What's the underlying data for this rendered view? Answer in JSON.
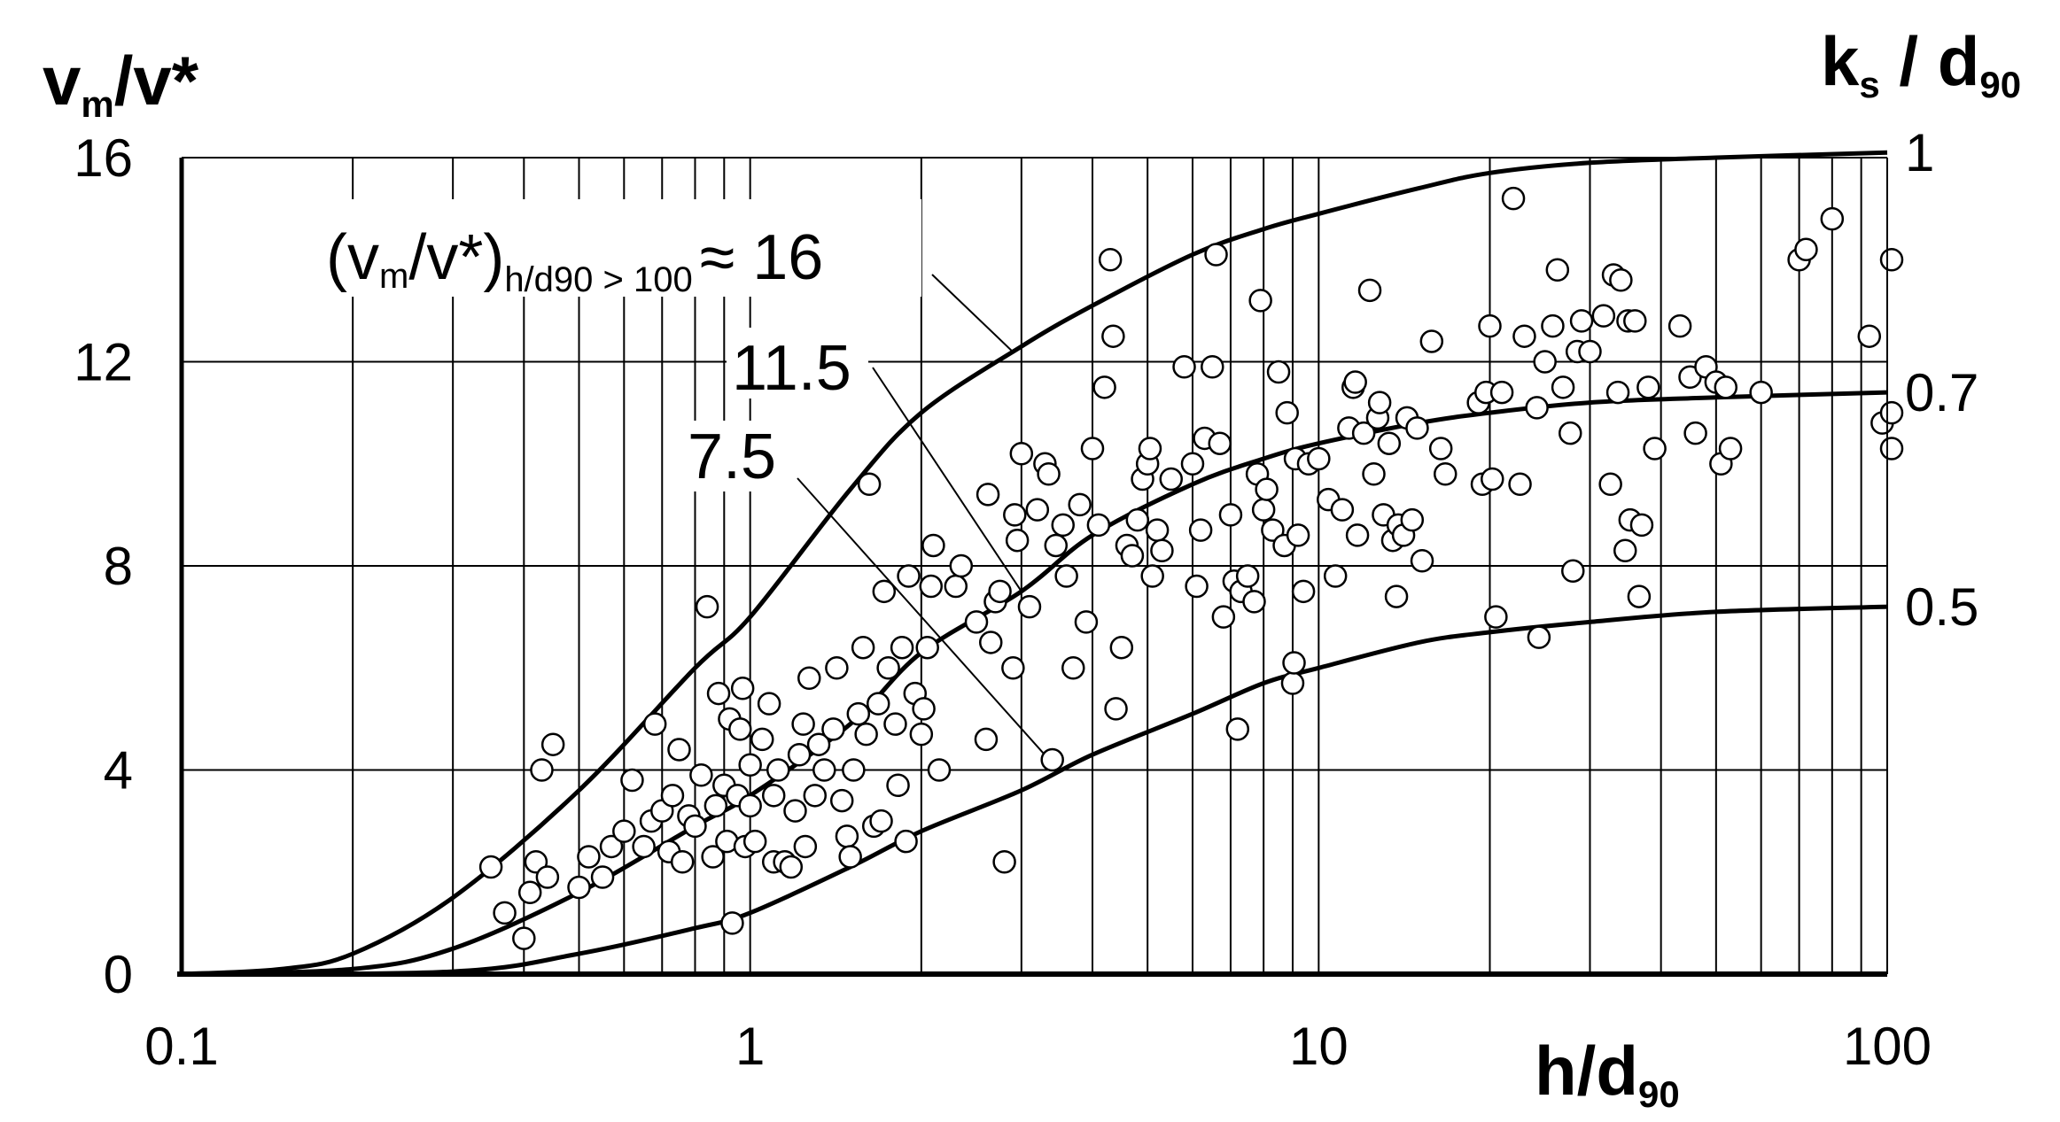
{
  "chart_data": {
    "type": "scatter",
    "x_scale": "log",
    "xlim": [
      0.1,
      100
    ],
    "ylim": [
      0,
      16
    ],
    "grid": true,
    "x_ticks": [
      "0.1",
      "1",
      "10",
      "100"
    ],
    "y_ticks": [
      "0",
      "4",
      "8",
      "12",
      "16"
    ],
    "right_ticks": [
      "1",
      "0.7",
      "0.5"
    ],
    "xlabel": {
      "main": "h/d",
      "sub": "90"
    },
    "ylabel": {
      "v1": "v",
      "sub": "m",
      "rest": "/v*"
    },
    "right_label": {
      "main": "k",
      "sub_s": "s",
      "mid": " / d",
      "sub_90": "90"
    },
    "annotation_16": {
      "open": "(v",
      "sub_m": "m",
      "mid": "/v*)",
      "sub_cond": "h/d90 > 100",
      "tail": "≈ 16"
    },
    "annotation_115": "11.5",
    "annotation_75": "7.5",
    "curves": [
      {
        "ks_d90": "1",
        "asymptote": 16,
        "points": [
          [
            0.1,
            0.0
          ],
          [
            0.15,
            0.1
          ],
          [
            0.2,
            0.4
          ],
          [
            0.3,
            1.5
          ],
          [
            0.5,
            3.6
          ],
          [
            0.8,
            6.0
          ],
          [
            1.0,
            7.0
          ],
          [
            1.5,
            9.5
          ],
          [
            2.0,
            11.0
          ],
          [
            3.0,
            12.3
          ],
          [
            4.0,
            13.1
          ],
          [
            6.0,
            14.1
          ],
          [
            8.0,
            14.6
          ],
          [
            10.0,
            14.9
          ],
          [
            15.0,
            15.4
          ],
          [
            20.0,
            15.7
          ],
          [
            30.0,
            15.9
          ],
          [
            50.0,
            16.0
          ],
          [
            100.0,
            16.1
          ]
        ]
      },
      {
        "ks_d90": "0.7",
        "asymptote": 11.5,
        "points": [
          [
            0.1,
            0.0
          ],
          [
            0.2,
            0.1
          ],
          [
            0.3,
            0.5
          ],
          [
            0.5,
            1.6
          ],
          [
            0.8,
            2.9
          ],
          [
            1.0,
            3.5
          ],
          [
            1.5,
            4.9
          ],
          [
            2.0,
            6.3
          ],
          [
            3.0,
            7.5
          ],
          [
            4.0,
            8.6
          ],
          [
            6.0,
            9.6
          ],
          [
            8.0,
            10.1
          ],
          [
            10.0,
            10.4
          ],
          [
            15.0,
            10.8
          ],
          [
            20.0,
            11.0
          ],
          [
            30.0,
            11.2
          ],
          [
            50.0,
            11.3
          ],
          [
            100.0,
            11.4
          ]
        ]
      },
      {
        "ks_d90": "0.5",
        "asymptote": 7.5,
        "points": [
          [
            0.1,
            0.0
          ],
          [
            0.3,
            0.05
          ],
          [
            0.5,
            0.4
          ],
          [
            0.8,
            0.9
          ],
          [
            1.0,
            1.2
          ],
          [
            1.5,
            2.1
          ],
          [
            2.0,
            2.8
          ],
          [
            3.0,
            3.6
          ],
          [
            4.0,
            4.3
          ],
          [
            6.0,
            5.1
          ],
          [
            8.0,
            5.7
          ],
          [
            10.0,
            6.0
          ],
          [
            15.0,
            6.5
          ],
          [
            20.0,
            6.7
          ],
          [
            30.0,
            6.9
          ],
          [
            50.0,
            7.1
          ],
          [
            100.0,
            7.2
          ]
        ]
      }
    ],
    "scatter": [
      [
        0.35,
        2.1
      ],
      [
        0.37,
        1.2
      ],
      [
        0.4,
        0.7
      ],
      [
        0.41,
        1.6
      ],
      [
        0.42,
        2.2
      ],
      [
        0.43,
        4.0
      ],
      [
        0.45,
        4.5
      ],
      [
        0.44,
        1.9
      ],
      [
        0.5,
        1.7
      ],
      [
        0.52,
        2.3
      ],
      [
        0.55,
        1.9
      ],
      [
        0.57,
        2.5
      ],
      [
        0.6,
        2.8
      ],
      [
        0.62,
        3.8
      ],
      [
        0.65,
        2.5
      ],
      [
        0.67,
        3.0
      ],
      [
        0.68,
        4.9
      ],
      [
        0.7,
        3.2
      ],
      [
        0.72,
        2.4
      ],
      [
        0.73,
        3.5
      ],
      [
        0.75,
        4.4
      ],
      [
        0.76,
        2.2
      ],
      [
        0.78,
        3.1
      ],
      [
        0.8,
        2.9
      ],
      [
        0.82,
        3.9
      ],
      [
        0.84,
        7.2
      ],
      [
        0.86,
        2.3
      ],
      [
        0.87,
        3.3
      ],
      [
        0.88,
        5.5
      ],
      [
        0.9,
        3.7
      ],
      [
        0.91,
        2.6
      ],
      [
        0.92,
        5.0
      ],
      [
        0.93,
        1.0
      ],
      [
        0.95,
        3.5
      ],
      [
        0.96,
        4.8
      ],
      [
        0.97,
        5.6
      ],
      [
        0.98,
        2.5
      ],
      [
        1.0,
        3.3
      ],
      [
        1.0,
        4.1
      ],
      [
        1.02,
        2.6
      ],
      [
        1.05,
        4.6
      ],
      [
        1.08,
        5.3
      ],
      [
        1.1,
        2.2
      ],
      [
        1.1,
        3.5
      ],
      [
        1.12,
        4.0
      ],
      [
        1.15,
        2.2
      ],
      [
        1.18,
        2.1
      ],
      [
        1.2,
        3.2
      ],
      [
        1.22,
        4.3
      ],
      [
        1.24,
        4.9
      ],
      [
        1.25,
        2.5
      ],
      [
        1.27,
        5.8
      ],
      [
        1.3,
        3.5
      ],
      [
        1.32,
        4.5
      ],
      [
        1.35,
        4.0
      ],
      [
        1.4,
        4.8
      ],
      [
        1.42,
        6.0
      ],
      [
        1.45,
        3.4
      ],
      [
        1.48,
        2.7
      ],
      [
        1.5,
        2.3
      ],
      [
        1.52,
        4.0
      ],
      [
        1.55,
        5.1
      ],
      [
        1.58,
        6.4
      ],
      [
        1.6,
        4.7
      ],
      [
        1.62,
        9.6
      ],
      [
        1.65,
        2.9
      ],
      [
        1.68,
        5.3
      ],
      [
        1.7,
        3.0
      ],
      [
        1.72,
        7.5
      ],
      [
        1.75,
        6.0
      ],
      [
        1.8,
        4.9
      ],
      [
        1.82,
        3.7
      ],
      [
        1.85,
        6.4
      ],
      [
        1.88,
        2.6
      ],
      [
        1.9,
        7.8
      ],
      [
        1.95,
        5.5
      ],
      [
        2.0,
        4.7
      ],
      [
        2.02,
        5.2
      ],
      [
        2.05,
        6.4
      ],
      [
        2.08,
        7.6
      ],
      [
        2.1,
        8.4
      ],
      [
        2.15,
        4.0
      ],
      [
        2.3,
        7.6
      ],
      [
        2.35,
        8.0
      ],
      [
        2.5,
        6.9
      ],
      [
        2.6,
        4.6
      ],
      [
        2.62,
        9.4
      ],
      [
        2.65,
        6.5
      ],
      [
        2.7,
        7.3
      ],
      [
        2.75,
        7.5
      ],
      [
        2.8,
        2.2
      ],
      [
        2.9,
        6.0
      ],
      [
        2.92,
        9.0
      ],
      [
        2.95,
        8.5
      ],
      [
        3.0,
        10.2
      ],
      [
        3.1,
        7.2
      ],
      [
        3.2,
        9.1
      ],
      [
        3.3,
        10.0
      ],
      [
        3.35,
        9.8
      ],
      [
        3.4,
        4.2
      ],
      [
        3.45,
        8.4
      ],
      [
        3.55,
        8.8
      ],
      [
        3.6,
        7.8
      ],
      [
        3.7,
        6.0
      ],
      [
        3.8,
        9.2
      ],
      [
        3.9,
        6.9
      ],
      [
        4.0,
        10.3
      ],
      [
        4.1,
        8.8
      ],
      [
        4.2,
        11.5
      ],
      [
        4.3,
        14.0
      ],
      [
        4.35,
        12.5
      ],
      [
        4.4,
        5.2
      ],
      [
        4.5,
        6.4
      ],
      [
        4.6,
        8.4
      ],
      [
        4.7,
        8.2
      ],
      [
        4.8,
        8.9
      ],
      [
        4.9,
        9.7
      ],
      [
        5.0,
        10.0
      ],
      [
        5.05,
        10.3
      ],
      [
        5.1,
        7.8
      ],
      [
        5.2,
        8.7
      ],
      [
        5.3,
        8.3
      ],
      [
        5.5,
        9.7
      ],
      [
        5.8,
        11.9
      ],
      [
        6.0,
        10.0
      ],
      [
        6.1,
        7.6
      ],
      [
        6.2,
        8.7
      ],
      [
        6.3,
        10.5
      ],
      [
        6.5,
        11.9
      ],
      [
        6.6,
        14.1
      ],
      [
        6.7,
        10.4
      ],
      [
        6.8,
        7.0
      ],
      [
        7.0,
        9.0
      ],
      [
        7.1,
        7.7
      ],
      [
        7.2,
        4.8
      ],
      [
        7.3,
        7.5
      ],
      [
        7.5,
        7.8
      ],
      [
        7.7,
        7.3
      ],
      [
        7.8,
        9.8
      ],
      [
        7.9,
        13.2
      ],
      [
        8.0,
        9.1
      ],
      [
        8.1,
        9.5
      ],
      [
        8.3,
        8.7
      ],
      [
        8.5,
        11.8
      ],
      [
        8.7,
        8.4
      ],
      [
        8.8,
        11.0
      ],
      [
        9.0,
        5.7
      ],
      [
        9.05,
        6.1
      ],
      [
        9.1,
        10.1
      ],
      [
        9.2,
        8.6
      ],
      [
        9.4,
        7.5
      ],
      [
        9.6,
        10.0
      ],
      [
        10.0,
        10.1
      ],
      [
        10.4,
        9.3
      ],
      [
        10.7,
        7.8
      ],
      [
        11.0,
        9.1
      ],
      [
        11.3,
        10.7
      ],
      [
        11.5,
        11.5
      ],
      [
        11.6,
        11.6
      ],
      [
        11.7,
        8.6
      ],
      [
        12.0,
        10.6
      ],
      [
        12.3,
        13.4
      ],
      [
        12.5,
        9.8
      ],
      [
        12.7,
        10.9
      ],
      [
        12.8,
        11.2
      ],
      [
        13.0,
        9.0
      ],
      [
        13.3,
        10.4
      ],
      [
        13.5,
        8.5
      ],
      [
        13.7,
        7.4
      ],
      [
        13.8,
        8.8
      ],
      [
        14.1,
        8.6
      ],
      [
        14.3,
        10.9
      ],
      [
        14.6,
        8.9
      ],
      [
        14.9,
        10.7
      ],
      [
        15.2,
        8.1
      ],
      [
        15.8,
        12.4
      ],
      [
        16.4,
        10.3
      ],
      [
        16.7,
        9.8
      ],
      [
        19.1,
        11.2
      ],
      [
        19.4,
        9.6
      ],
      [
        19.7,
        11.4
      ],
      [
        20.0,
        12.7
      ],
      [
        20.2,
        9.7
      ],
      [
        20.5,
        7.0
      ],
      [
        21.0,
        11.4
      ],
      [
        22.0,
        15.2
      ],
      [
        22.6,
        9.6
      ],
      [
        23.0,
        12.5
      ],
      [
        24.2,
        11.1
      ],
      [
        24.4,
        6.6
      ],
      [
        25.0,
        12.0
      ],
      [
        25.8,
        12.7
      ],
      [
        26.3,
        13.8
      ],
      [
        26.9,
        11.5
      ],
      [
        27.7,
        10.6
      ],
      [
        28.0,
        7.9
      ],
      [
        28.5,
        12.2
      ],
      [
        29.0,
        12.8
      ],
      [
        30.0,
        12.2
      ],
      [
        31.7,
        12.9
      ],
      [
        32.6,
        9.6
      ],
      [
        33.0,
        13.7
      ],
      [
        33.6,
        11.4
      ],
      [
        34.0,
        13.6
      ],
      [
        34.6,
        8.3
      ],
      [
        35.0,
        12.8
      ],
      [
        35.3,
        8.9
      ],
      [
        36.0,
        12.8
      ],
      [
        36.6,
        7.4
      ],
      [
        37.0,
        8.8
      ],
      [
        38.0,
        11.5
      ],
      [
        39.0,
        10.3
      ],
      [
        43.2,
        12.7
      ],
      [
        45.0,
        11.7
      ],
      [
        46.0,
        10.6
      ],
      [
        48.0,
        11.9
      ],
      [
        50.0,
        11.6
      ],
      [
        51.0,
        10.0
      ],
      [
        52.0,
        11.5
      ],
      [
        53.0,
        10.3
      ],
      [
        60.0,
        11.4
      ],
      [
        70.0,
        14.0
      ],
      [
        72.0,
        14.2
      ],
      [
        80.0,
        14.8
      ],
      [
        93.0,
        12.5
      ],
      [
        98.0,
        10.8
      ],
      [
        110.0,
        10.3
      ],
      [
        112.0,
        14.0
      ],
      [
        130.0,
        11.0
      ]
    ]
  }
}
